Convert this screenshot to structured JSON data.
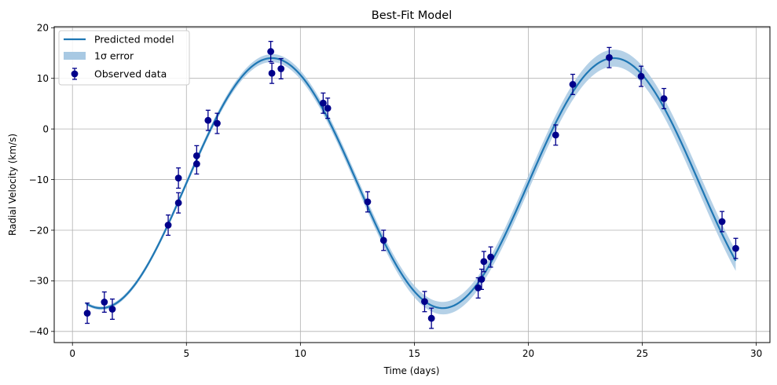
{
  "chart_data": {
    "type": "line",
    "title": "Best-Fit Model",
    "xlabel": "Time (days)",
    "ylabel": "Radial Velocity (km/s)",
    "xlim": [
      -0.8,
      30.6
    ],
    "ylim": [
      -42.2,
      20.2
    ],
    "xticks": [
      0,
      5,
      10,
      15,
      20,
      25,
      30
    ],
    "yticks": [
      -40,
      -30,
      -20,
      -10,
      0,
      10,
      20
    ],
    "grid": true,
    "legend_position": "top-left",
    "colors": {
      "model": "#1f77b4",
      "band": "#a8c9e3",
      "data": "#00008b"
    },
    "legend": [
      {
        "label": "Predicted model",
        "kind": "line"
      },
      {
        "label": "1σ error",
        "kind": "band"
      },
      {
        "label": "Observed data",
        "kind": "errorbar"
      }
    ],
    "model": {
      "name": "Predicted model",
      "x_range": [
        0.6,
        29.1
      ],
      "offset": -10.7,
      "amplitude": 24.7,
      "period": 15.0,
      "phase_peak_day": 8.75,
      "sigma_start": 0.3,
      "sigma_end": 2.0
    },
    "observed": {
      "name": "Observed data",
      "error": 2.0,
      "points": [
        {
          "x": 0.65,
          "y": -36.4
        },
        {
          "x": 1.4,
          "y": -34.2
        },
        {
          "x": 1.75,
          "y": -35.6
        },
        {
          "x": 4.2,
          "y": -19.0
        },
        {
          "x": 4.65,
          "y": -9.7
        },
        {
          "x": 4.65,
          "y": -14.6
        },
        {
          "x": 5.45,
          "y": -5.3
        },
        {
          "x": 5.45,
          "y": -6.9
        },
        {
          "x": 5.95,
          "y": 1.7
        },
        {
          "x": 6.35,
          "y": 1.1
        },
        {
          "x": 8.7,
          "y": 15.3
        },
        {
          "x": 8.75,
          "y": 11.0
        },
        {
          "x": 9.15,
          "y": 11.9
        },
        {
          "x": 11.0,
          "y": 5.1
        },
        {
          "x": 11.2,
          "y": 4.1
        },
        {
          "x": 12.95,
          "y": -14.4
        },
        {
          "x": 13.65,
          "y": -22.0
        },
        {
          "x": 15.45,
          "y": -34.1
        },
        {
          "x": 15.75,
          "y": -37.4
        },
        {
          "x": 17.8,
          "y": -31.4
        },
        {
          "x": 17.95,
          "y": -29.7
        },
        {
          "x": 18.05,
          "y": -26.2
        },
        {
          "x": 18.35,
          "y": -25.3
        },
        {
          "x": 21.2,
          "y": -1.2
        },
        {
          "x": 21.95,
          "y": 8.8
        },
        {
          "x": 23.55,
          "y": 14.1
        },
        {
          "x": 24.95,
          "y": 10.4
        },
        {
          "x": 25.95,
          "y": 6.0
        },
        {
          "x": 28.5,
          "y": -18.3
        },
        {
          "x": 29.1,
          "y": -23.6
        }
      ]
    }
  }
}
